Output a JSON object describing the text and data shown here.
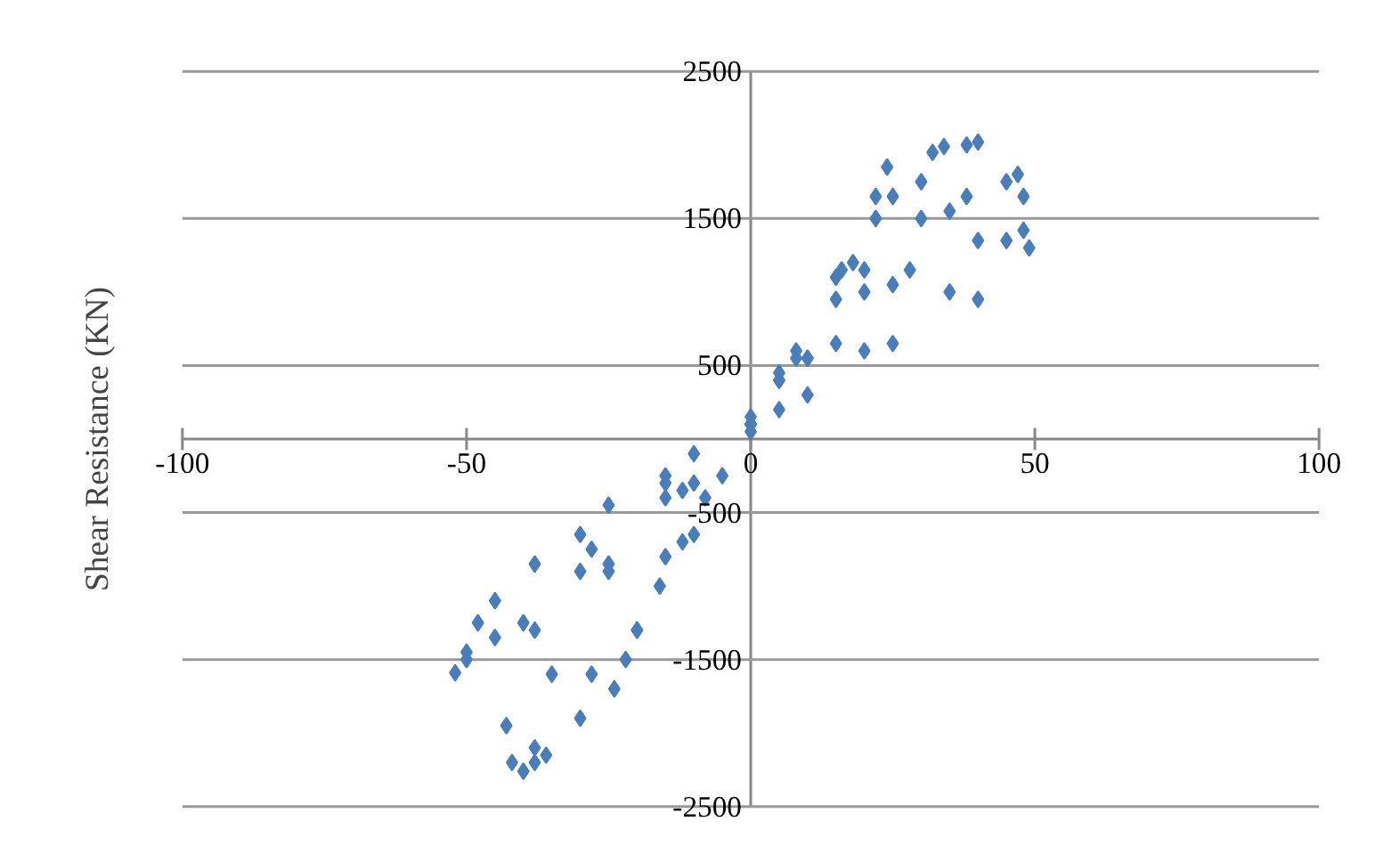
{
  "chart_data": {
    "type": "scatter",
    "ylabel": "Shear Resistance (KN)",
    "xlim": [
      -100,
      100
    ],
    "xticks": [
      -100,
      -50,
      0,
      50,
      100
    ],
    "ylim": [
      -2500,
      2500
    ],
    "yticks": [
      -2500,
      -1500,
      -500,
      500,
      1500,
      2500
    ],
    "grid": "y",
    "marker": "diamond",
    "series": [
      {
        "color": "#4a7ebb",
        "x": [
          0,
          8,
          16,
          22,
          24,
          22,
          15,
          8,
          0,
          -8,
          -16,
          -22,
          -24,
          -20,
          -12,
          -5,
          5,
          15,
          25,
          32,
          34,
          30,
          20,
          10,
          0,
          -10,
          -20,
          -30,
          -36,
          -38,
          -35,
          -25,
          -12,
          5,
          18,
          30,
          38,
          40,
          38,
          28,
          15,
          0,
          -15,
          -28,
          -38,
          -40,
          -42,
          -43,
          -38,
          -28,
          -15,
          5,
          20,
          35,
          45,
          47,
          48,
          45,
          35,
          20,
          5,
          -10,
          -25,
          -40,
          -50,
          -52,
          -48,
          -38,
          -25,
          -10,
          10,
          25,
          40,
          48,
          49,
          40,
          25,
          10,
          0,
          -15,
          -30,
          -45,
          -50,
          -45,
          -30,
          -15,
          0
        ],
        "values": [
          100,
          600,
          1150,
          1650,
          1850,
          1500,
          950,
          550,
          150,
          -400,
          -1000,
          -1500,
          -1700,
          -1300,
          -700,
          -250,
          400,
          1100,
          1650,
          1950,
          1990,
          1500,
          1000,
          550,
          100,
          -650,
          -1300,
          -1900,
          -2150,
          -2200,
          -1600,
          -900,
          -350,
          450,
          1200,
          1750,
          2000,
          2020,
          1650,
          1150,
          650,
          100,
          -800,
          -1600,
          -2100,
          -2260,
          -2200,
          -1950,
          -1300,
          -750,
          -300,
          400,
          1150,
          1550,
          1750,
          1800,
          1650,
          1350,
          1000,
          600,
          200,
          -300,
          -850,
          -1250,
          -1500,
          -1590,
          -1250,
          -850,
          -450,
          -100,
          550,
          1050,
          1350,
          1420,
          1300,
          950,
          650,
          300,
          50,
          -400,
          -900,
          -1350,
          -1450,
          -1100,
          -650,
          -250,
          100
        ]
      }
    ]
  }
}
